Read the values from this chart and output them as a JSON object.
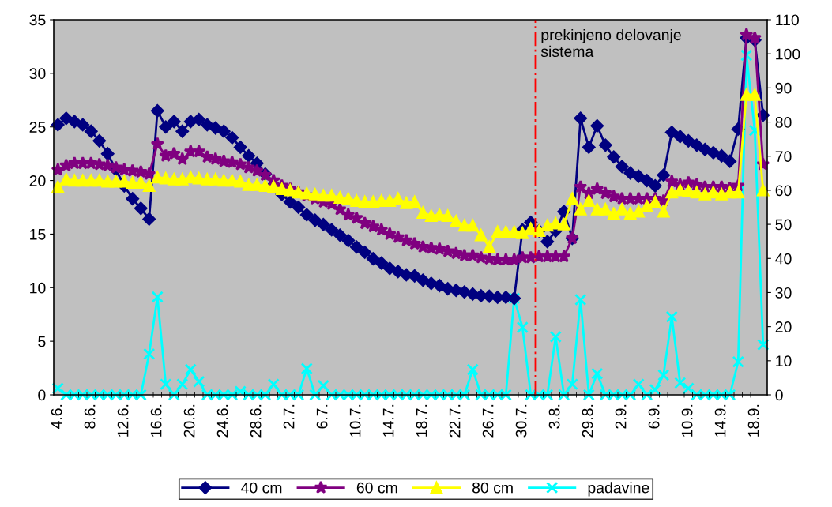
{
  "chart_data": {
    "type": "line",
    "categories": [
      "4.6.",
      null,
      null,
      null,
      "8.6.",
      null,
      null,
      null,
      "12.6.",
      null,
      null,
      null,
      "16.6.",
      null,
      null,
      null,
      "20.6.",
      null,
      null,
      null,
      "24.6.",
      null,
      null,
      null,
      "28.6.",
      null,
      null,
      null,
      "2.7.",
      null,
      null,
      null,
      "6.7.",
      null,
      null,
      null,
      "10.7.",
      null,
      null,
      null,
      "14.7.",
      null,
      null,
      null,
      "18.7.",
      null,
      null,
      null,
      "22.7.",
      null,
      null,
      null,
      "26.7.",
      null,
      null,
      null,
      "30.7.",
      null,
      null,
      null,
      "3.8.",
      null,
      null,
      null,
      "29.8.",
      null,
      null,
      null,
      "2.9.",
      null,
      null,
      null,
      "6.9.",
      null,
      null,
      null,
      "10.9.",
      null,
      null,
      null,
      "14.9.",
      null,
      null,
      null,
      "18.9.",
      null
    ],
    "series": [
      {
        "name": "40 cm",
        "color": "#000080",
        "marker": "diamond",
        "values": [
          25.2,
          25.8,
          25.5,
          25.2,
          24.6,
          23.7,
          22.5,
          21.0,
          19.5,
          18.3,
          17.4,
          16.4,
          26.5,
          25.0,
          25.5,
          24.6,
          25.5,
          25.7,
          25.2,
          24.9,
          24.6,
          24.0,
          23.1,
          22.3,
          21.6,
          20.6,
          19.6,
          18.7,
          18.0,
          17.5,
          16.8,
          16.3,
          15.9,
          15.4,
          14.9,
          14.4,
          13.8,
          13.3,
          12.7,
          12.3,
          11.8,
          11.5,
          11.2,
          11.1,
          10.7,
          10.4,
          10.2,
          9.9,
          9.75,
          9.6,
          9.4,
          9.25,
          9.2,
          9.1,
          9.1,
          9.0,
          15.4,
          16.1,
          15.3,
          14.3,
          15.3,
          17.1,
          14.6,
          25.8,
          23.1,
          25.1,
          23.3,
          22.2,
          21.3,
          20.7,
          20.4,
          20.0,
          19.5,
          20.5,
          24.5,
          24.1,
          23.7,
          23.3,
          22.9,
          22.6,
          22.3,
          21.8,
          24.8,
          33.3,
          33.1,
          26.1
        ]
      },
      {
        "name": "60 cm",
        "color": "#800080",
        "marker": "star",
        "values": [
          21.0,
          21.4,
          21.6,
          21.6,
          21.6,
          21.5,
          21.4,
          21.2,
          21.0,
          20.9,
          20.8,
          20.6,
          23.4,
          22.3,
          22.5,
          22.0,
          22.7,
          22.7,
          22.2,
          22.0,
          21.8,
          21.7,
          21.5,
          21.2,
          20.9,
          20.5,
          20.0,
          19.5,
          19.2,
          18.9,
          18.6,
          18.3,
          18.0,
          17.8,
          17.3,
          16.8,
          16.5,
          16.0,
          15.7,
          15.4,
          15.0,
          14.7,
          14.4,
          14.1,
          13.8,
          13.7,
          13.6,
          13.4,
          13.2,
          13.0,
          13.0,
          12.8,
          12.7,
          12.6,
          12.6,
          12.6,
          12.8,
          12.8,
          12.9,
          12.9,
          12.9,
          12.9,
          14.6,
          19.4,
          18.8,
          19.2,
          18.8,
          18.5,
          18.3,
          18.3,
          18.3,
          18.3,
          18.3,
          18.1,
          19.9,
          19.6,
          19.8,
          19.6,
          19.4,
          19.4,
          19.4,
          19.3,
          19.5,
          33.6,
          33.3,
          21.5
        ]
      },
      {
        "name": "80 cm",
        "color": "#ffff00",
        "marker": "triangle",
        "values": [
          19.4,
          20.1,
          20.0,
          20.0,
          20.0,
          20.0,
          19.9,
          19.9,
          19.9,
          19.8,
          19.8,
          19.5,
          20.3,
          20.2,
          20.1,
          20.1,
          20.3,
          20.2,
          20.1,
          20.1,
          20.0,
          20.0,
          19.9,
          19.6,
          19.6,
          19.5,
          19.4,
          19.2,
          19.1,
          18.9,
          18.8,
          18.7,
          18.6,
          18.6,
          18.4,
          18.3,
          18.1,
          18.0,
          18.0,
          18.1,
          18.1,
          18.3,
          17.9,
          18.0,
          17.0,
          16.7,
          16.8,
          16.7,
          16.2,
          15.8,
          15.8,
          14.9,
          13.8,
          15.2,
          15.2,
          15.2,
          15.1,
          15.5,
          15.3,
          15.8,
          16.0,
          15.9,
          18.3,
          17.3,
          18.1,
          17.3,
          17.3,
          16.9,
          17.3,
          16.9,
          17.1,
          17.6,
          18.0,
          17.1,
          18.9,
          19.1,
          19.0,
          18.9,
          18.7,
          18.9,
          18.7,
          18.9,
          18.9,
          28.0,
          28.0,
          19.1
        ]
      },
      {
        "name": "padavine",
        "color": "#00ffff",
        "marker": "cross",
        "axis": "y2",
        "values": [
          1.9,
          0,
          0,
          0,
          0,
          0,
          0,
          0,
          0,
          0,
          0,
          12.0,
          28.7,
          3.1,
          0,
          3.1,
          7.4,
          3.9,
          0,
          0,
          0,
          0,
          1,
          0,
          0,
          0,
          3.1,
          0,
          0,
          0,
          7.7,
          0,
          2.7,
          0,
          0,
          0,
          0,
          0,
          0,
          0,
          0,
          0,
          0,
          0,
          0,
          0,
          0,
          0,
          0,
          0,
          7.4,
          0,
          0,
          0,
          0,
          28.3,
          19.8,
          0,
          0,
          0,
          17.0,
          0,
          3.1,
          27.9,
          0,
          6.2,
          0,
          0,
          0,
          0,
          3.1,
          0,
          1.5,
          5.8,
          22.9,
          3.5,
          1.9,
          0,
          0,
          0,
          0,
          0,
          9.7,
          99.6,
          77.5,
          14.7
        ]
      }
    ],
    "ylim": [
      0,
      35
    ],
    "yticks": [
      0,
      5,
      10,
      15,
      20,
      25,
      30,
      35
    ],
    "y2lim": [
      0,
      110
    ],
    "y2ticks": [
      0,
      10,
      20,
      30,
      40,
      50,
      60,
      70,
      80,
      90,
      100,
      110
    ],
    "annotations": [
      "prekinjeno delovanje\nsistema"
    ],
    "grid": false,
    "legend": "bottom"
  }
}
